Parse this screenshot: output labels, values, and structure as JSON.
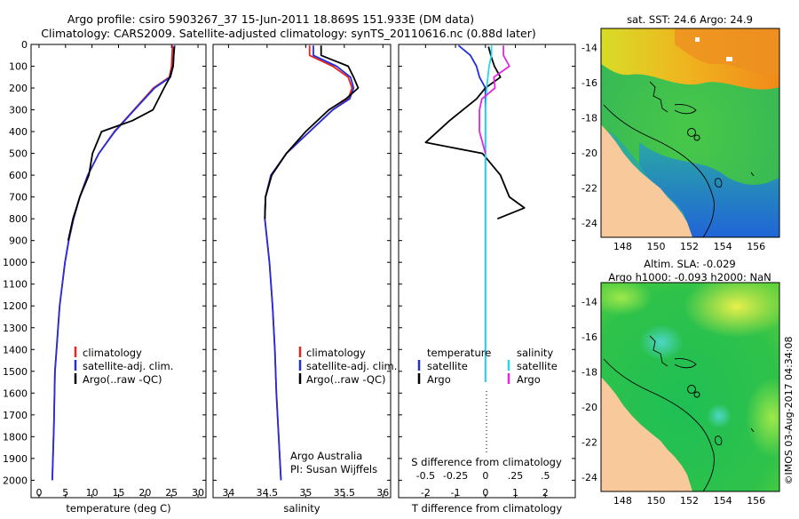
{
  "header": {
    "title_line1": "Argo profile: csiro 5903267_37 15-Jun-2011 18.869S 151.933E (DM data)",
    "title_line2": "Climatology: CARS2009. Satellite-adjusted climatology: synTS_20110616.nc (0.88d later)"
  },
  "colors": {
    "climatology": "#e8241c",
    "satellite_adj": "#1f2fdc",
    "argo": "#000000",
    "salinity_satellite": "#25d8e8",
    "salinity_argo": "#df28df",
    "land": "#f7c99b"
  },
  "legend_profiles": [
    "climatology",
    "satellite-adj. clim.",
    "Argo(..raw -QC)"
  ],
  "credits": {
    "org": "Argo Australia",
    "pi": "PI: Susan Wijffels"
  },
  "timestamp": "©IMOS 03-Aug-2017 04:34:08",
  "chart_data": [
    {
      "type": "line",
      "title": "",
      "xlabel": "temperature (deg C)",
      "ylabel": "",
      "xlim": [
        -1.5,
        31.5
      ],
      "ylim": [
        2080,
        0
      ],
      "xticks": [
        0,
        5,
        10,
        15,
        20,
        25,
        30
      ],
      "yticks": [
        0,
        100,
        200,
        300,
        400,
        500,
        600,
        700,
        800,
        900,
        1000,
        1100,
        1200,
        1300,
        1400,
        1500,
        1600,
        1700,
        1800,
        1900,
        2000
      ],
      "series": [
        {
          "name": "climatology",
          "color": "#e8241c",
          "x": [
            25.2,
            25.1,
            25.0,
            24.6,
            21.6,
            17.9,
            14.2,
            11.3,
            9.2,
            7.7,
            6.5,
            5.6,
            4.9,
            4.4,
            3.9,
            3.6,
            3.3,
            3.0,
            2.8,
            2.5
          ],
          "y": [
            5,
            50,
            100,
            150,
            200,
            300,
            400,
            500,
            600,
            700,
            800,
            900,
            1000,
            1100,
            1200,
            1300,
            1400,
            1500,
            1750,
            2000
          ]
        },
        {
          "name": "satellite-adj. clim.",
          "color": "#1f2fdc",
          "x": [
            25.6,
            25.4,
            25.3,
            24.8,
            21.8,
            18.0,
            14.3,
            11.3,
            9.2,
            7.7,
            6.5,
            5.6,
            4.9,
            4.4,
            3.9,
            3.6,
            3.3,
            3.0,
            2.8,
            2.5
          ],
          "y": [
            5,
            50,
            100,
            150,
            200,
            300,
            400,
            500,
            600,
            700,
            800,
            900,
            1000,
            1100,
            1200,
            1300,
            1400,
            1500,
            1750,
            2000
          ]
        },
        {
          "name": "Argo(..raw -QC)",
          "color": "#000000",
          "x": [
            25.5,
            25.4,
            25.3,
            24.7,
            23.6,
            21.5,
            17.6,
            11.8,
            10.1,
            9.4,
            7.7,
            6.4,
            5.5
          ],
          "y": [
            10,
            60,
            100,
            150,
            200,
            300,
            350,
            400,
            500,
            600,
            700,
            800,
            900
          ]
        }
      ]
    },
    {
      "type": "line",
      "title": "",
      "xlabel": "salinity",
      "ylabel": "",
      "xlim": [
        33.8,
        36.1
      ],
      "ylim": [
        2080,
        0
      ],
      "xticks": [
        34,
        34.5,
        35,
        35.5,
        36
      ],
      "series": [
        {
          "name": "climatology",
          "color": "#e8241c",
          "x": [
            35.05,
            35.05,
            35.35,
            35.55,
            35.6,
            35.55,
            35.35,
            35.05,
            34.75,
            34.55,
            34.48,
            34.47,
            34.5,
            34.53,
            34.57,
            34.6,
            34.62,
            34.65,
            34.68
          ],
          "y": [
            5,
            50,
            100,
            150,
            200,
            250,
            300,
            400,
            500,
            600,
            700,
            800,
            900,
            1000,
            1200,
            1400,
            1600,
            1800,
            2000
          ]
        },
        {
          "name": "satellite-adj. clim.",
          "color": "#1f2fdc",
          "x": [
            35.1,
            35.1,
            35.4,
            35.58,
            35.62,
            35.57,
            35.35,
            35.05,
            34.75,
            34.55,
            34.48,
            34.47,
            34.5,
            34.53,
            34.57,
            34.6,
            34.62,
            34.65,
            34.68
          ],
          "y": [
            5,
            50,
            100,
            150,
            200,
            250,
            300,
            400,
            500,
            600,
            700,
            800,
            900,
            1000,
            1200,
            1400,
            1600,
            1800,
            2000
          ]
        },
        {
          "name": "Argo(..raw -QC)",
          "color": "#000000",
          "x": [
            35.2,
            35.2,
            35.55,
            35.62,
            35.68,
            35.52,
            35.3,
            35.0,
            34.75,
            34.56,
            34.48,
            34.47
          ],
          "y": [
            5,
            50,
            100,
            150,
            200,
            250,
            300,
            400,
            500,
            600,
            700,
            800
          ]
        }
      ]
    },
    {
      "type": "line",
      "title": "",
      "xlabel": "T difference from climatology",
      "xlabel2": "S difference from climatology",
      "ylabel": "",
      "xlim": [
        -2.9,
        3.0
      ],
      "xlim_salinity": [
        -0.725,
        0.75
      ],
      "ylim": [
        2080,
        0
      ],
      "xticks": [
        -2,
        -1,
        0,
        1,
        2
      ],
      "xticks_salinity": [
        -0.5,
        -0.25,
        0,
        0.25,
        0.5
      ],
      "legend_temperature": {
        "heading": "temperature",
        "satellite": "satellite",
        "argo": "Argo"
      },
      "legend_salinity": {
        "heading": "salinity",
        "satellite": "satellite",
        "argo": "Argo"
      },
      "series": [
        {
          "name": "temperature satellite",
          "color": "#1f2fdc",
          "x": [
            -0.9,
            -0.5,
            -0.3,
            -0.2,
            0.0,
            0.0,
            0.0,
            0.0,
            0.0,
            0.0,
            0.0,
            0.0
          ],
          "y": [
            5,
            50,
            100,
            150,
            200,
            300,
            400,
            600,
            800,
            1000,
            1200,
            1550
          ]
        },
        {
          "name": "temperature Argo",
          "color": "#000000",
          "x": [
            0.1,
            0.2,
            0.3,
            0.5,
            0.0,
            -0.3,
            -1.2,
            -2.0,
            -0.1,
            0.5,
            0.8,
            1.3,
            0.4
          ],
          "y": [
            10,
            60,
            100,
            150,
            200,
            250,
            350,
            450,
            500,
            600,
            700,
            750,
            800
          ]
        },
        {
          "name": "salinity satellite",
          "color": "#25d8e8",
          "x": [
            0.05,
            0.05,
            0.03,
            0.02,
            0.01,
            0.0,
            0.0,
            0.0,
            0.0,
            0.0,
            0.0
          ],
          "y": [
            5,
            50,
            100,
            150,
            200,
            300,
            500,
            800,
            1000,
            1200,
            1550
          ]
        },
        {
          "name": "salinity Argo",
          "color": "#df28df",
          "x": [
            0.15,
            0.15,
            0.2,
            0.07,
            0.08,
            -0.03,
            -0.05,
            -0.05,
            0.0
          ],
          "y": [
            5,
            50,
            100,
            150,
            200,
            250,
            300,
            400,
            500
          ]
        }
      ]
    },
    {
      "type": "heatmap",
      "title": "sat. SST: 24.6 Argo: 24.9",
      "xticks": [
        148,
        150,
        152,
        154,
        156
      ],
      "yticks": [
        -14,
        -16,
        -18,
        -20,
        -22,
        -24
      ],
      "xlim": [
        146.7,
        157.4
      ],
      "ylim": [
        -24.8,
        -12.9
      ],
      "argo_position": [
        151.933,
        -18.869
      ]
    },
    {
      "type": "heatmap",
      "title": "Altim. SLA: -0.029",
      "title2": "Argo h1000: -0.093 h2000: NaN",
      "xticks": [
        148,
        150,
        152,
        154,
        156
      ],
      "yticks": [
        -14,
        -16,
        -18,
        -20,
        -22,
        -24
      ],
      "xlim": [
        146.7,
        157.4
      ],
      "ylim": [
        -24.8,
        -12.9
      ],
      "argo_position": [
        151.933,
        -18.869
      ]
    }
  ]
}
